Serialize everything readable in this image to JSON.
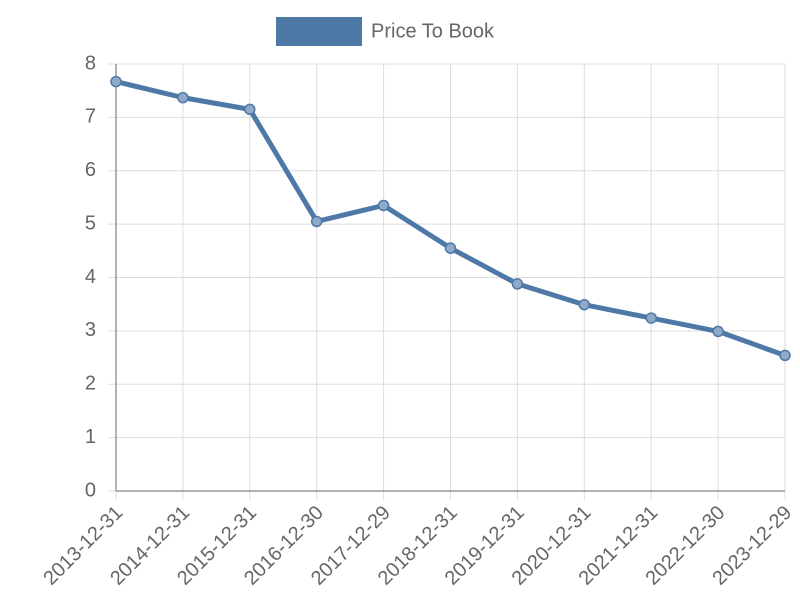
{
  "chart_data": {
    "type": "line",
    "categories": [
      "2013-12-31",
      "2014-12-31",
      "2015-12-31",
      "2016-12-30",
      "2017-12-29",
      "2018-12-31",
      "2019-12-31",
      "2020-12-31",
      "2021-12-31",
      "2022-12-30",
      "2023-12-29"
    ],
    "series": [
      {
        "name": "Price To Book",
        "color": "#4e79a7",
        "values": [
          7.67,
          7.37,
          7.15,
          5.05,
          5.35,
          4.55,
          3.88,
          3.49,
          3.24,
          2.99,
          2.54
        ]
      }
    ],
    "ylim": [
      0,
      8
    ],
    "yticks": [
      0,
      1,
      2,
      3,
      4,
      5,
      6,
      7,
      8
    ],
    "grid": true,
    "legend": "top"
  }
}
